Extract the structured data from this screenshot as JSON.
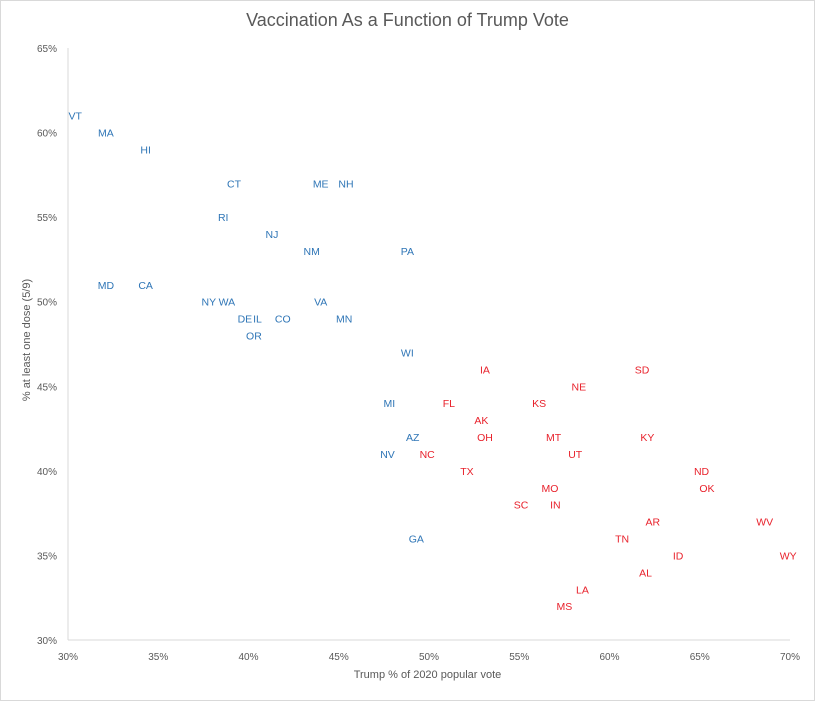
{
  "chart_data": {
    "type": "scatter",
    "title": "Vaccination As a Function of Trump Vote",
    "xlabel": "Trump % of 2020 popular vote",
    "ylabel": "% at least one dose (5/9)",
    "xlim": [
      0.3,
      0.7
    ],
    "ylim": [
      0.3,
      0.65
    ],
    "x_ticks": [
      "30%",
      "35%",
      "40%",
      "45%",
      "50%",
      "55%",
      "60%",
      "65%",
      "70%"
    ],
    "y_ticks": [
      "30%",
      "35%",
      "40%",
      "45%",
      "50%",
      "55%",
      "60%",
      "65%"
    ],
    "x_tick_values": [
      0.3,
      0.35,
      0.4,
      0.45,
      0.5,
      0.55,
      0.6,
      0.65,
      0.7
    ],
    "y_tick_values": [
      0.3,
      0.35,
      0.4,
      0.45,
      0.5,
      0.55,
      0.6,
      0.65
    ],
    "grid": false,
    "colors": {
      "blue": "#2e75b6",
      "red": "#e8212b",
      "axis": "#d9d9d9",
      "text": "#595959"
    },
    "points": [
      {
        "label": "VT",
        "x": 0.304,
        "y": 0.61,
        "color": "blue"
      },
      {
        "label": "MA",
        "x": 0.321,
        "y": 0.6,
        "color": "blue"
      },
      {
        "label": "HI",
        "x": 0.343,
        "y": 0.59,
        "color": "blue"
      },
      {
        "label": "CT",
        "x": 0.392,
        "y": 0.57,
        "color": "blue"
      },
      {
        "label": "ME",
        "x": 0.44,
        "y": 0.57,
        "color": "blue"
      },
      {
        "label": "NH",
        "x": 0.454,
        "y": 0.57,
        "color": "blue"
      },
      {
        "label": "RI",
        "x": 0.386,
        "y": 0.55,
        "color": "blue"
      },
      {
        "label": "NJ",
        "x": 0.413,
        "y": 0.54,
        "color": "blue"
      },
      {
        "label": "NM",
        "x": 0.435,
        "y": 0.53,
        "color": "blue"
      },
      {
        "label": "PA",
        "x": 0.488,
        "y": 0.53,
        "color": "blue"
      },
      {
        "label": "MD",
        "x": 0.321,
        "y": 0.51,
        "color": "blue"
      },
      {
        "label": "CA",
        "x": 0.343,
        "y": 0.51,
        "color": "blue"
      },
      {
        "label": "NY",
        "x": 0.378,
        "y": 0.5,
        "color": "blue"
      },
      {
        "label": "WA",
        "x": 0.388,
        "y": 0.5,
        "color": "blue"
      },
      {
        "label": "VA",
        "x": 0.44,
        "y": 0.5,
        "color": "blue"
      },
      {
        "label": "DE",
        "x": 0.398,
        "y": 0.49,
        "color": "blue"
      },
      {
        "label": "IL",
        "x": 0.405,
        "y": 0.49,
        "color": "blue"
      },
      {
        "label": "CO",
        "x": 0.419,
        "y": 0.49,
        "color": "blue"
      },
      {
        "label": "MN",
        "x": 0.453,
        "y": 0.49,
        "color": "blue"
      },
      {
        "label": "OR",
        "x": 0.403,
        "y": 0.48,
        "color": "blue"
      },
      {
        "label": "WI",
        "x": 0.488,
        "y": 0.47,
        "color": "blue"
      },
      {
        "label": "MI",
        "x": 0.478,
        "y": 0.44,
        "color": "blue"
      },
      {
        "label": "AZ",
        "x": 0.491,
        "y": 0.42,
        "color": "blue"
      },
      {
        "label": "NV",
        "x": 0.477,
        "y": 0.41,
        "color": "blue"
      },
      {
        "label": "GA",
        "x": 0.493,
        "y": 0.36,
        "color": "blue"
      },
      {
        "label": "IA",
        "x": 0.531,
        "y": 0.46,
        "color": "red"
      },
      {
        "label": "SD",
        "x": 0.618,
        "y": 0.46,
        "color": "red"
      },
      {
        "label": "NE",
        "x": 0.583,
        "y": 0.45,
        "color": "red"
      },
      {
        "label": "FL",
        "x": 0.511,
        "y": 0.44,
        "color": "red"
      },
      {
        "label": "KS",
        "x": 0.561,
        "y": 0.44,
        "color": "red"
      },
      {
        "label": "AK",
        "x": 0.529,
        "y": 0.43,
        "color": "red"
      },
      {
        "label": "OH",
        "x": 0.531,
        "y": 0.42,
        "color": "red"
      },
      {
        "label": "MT",
        "x": 0.569,
        "y": 0.42,
        "color": "red"
      },
      {
        "label": "KY",
        "x": 0.621,
        "y": 0.42,
        "color": "red"
      },
      {
        "label": "NC",
        "x": 0.499,
        "y": 0.41,
        "color": "red"
      },
      {
        "label": "UT",
        "x": 0.581,
        "y": 0.41,
        "color": "red"
      },
      {
        "label": "TX",
        "x": 0.521,
        "y": 0.4,
        "color": "red"
      },
      {
        "label": "ND",
        "x": 0.651,
        "y": 0.4,
        "color": "red"
      },
      {
        "label": "MO",
        "x": 0.567,
        "y": 0.39,
        "color": "red"
      },
      {
        "label": "OK",
        "x": 0.654,
        "y": 0.39,
        "color": "red"
      },
      {
        "label": "SC",
        "x": 0.551,
        "y": 0.38,
        "color": "red"
      },
      {
        "label": "IN",
        "x": 0.57,
        "y": 0.38,
        "color": "red"
      },
      {
        "label": "AR",
        "x": 0.624,
        "y": 0.37,
        "color": "red"
      },
      {
        "label": "WV",
        "x": 0.686,
        "y": 0.37,
        "color": "red"
      },
      {
        "label": "TN",
        "x": 0.607,
        "y": 0.36,
        "color": "red"
      },
      {
        "label": "ID",
        "x": 0.638,
        "y": 0.35,
        "color": "red"
      },
      {
        "label": "WY",
        "x": 0.699,
        "y": 0.35,
        "color": "red"
      },
      {
        "label": "AL",
        "x": 0.62,
        "y": 0.34,
        "color": "red"
      },
      {
        "label": "LA",
        "x": 0.585,
        "y": 0.33,
        "color": "red"
      },
      {
        "label": "MS",
        "x": 0.575,
        "y": 0.32,
        "color": "red"
      }
    ]
  }
}
